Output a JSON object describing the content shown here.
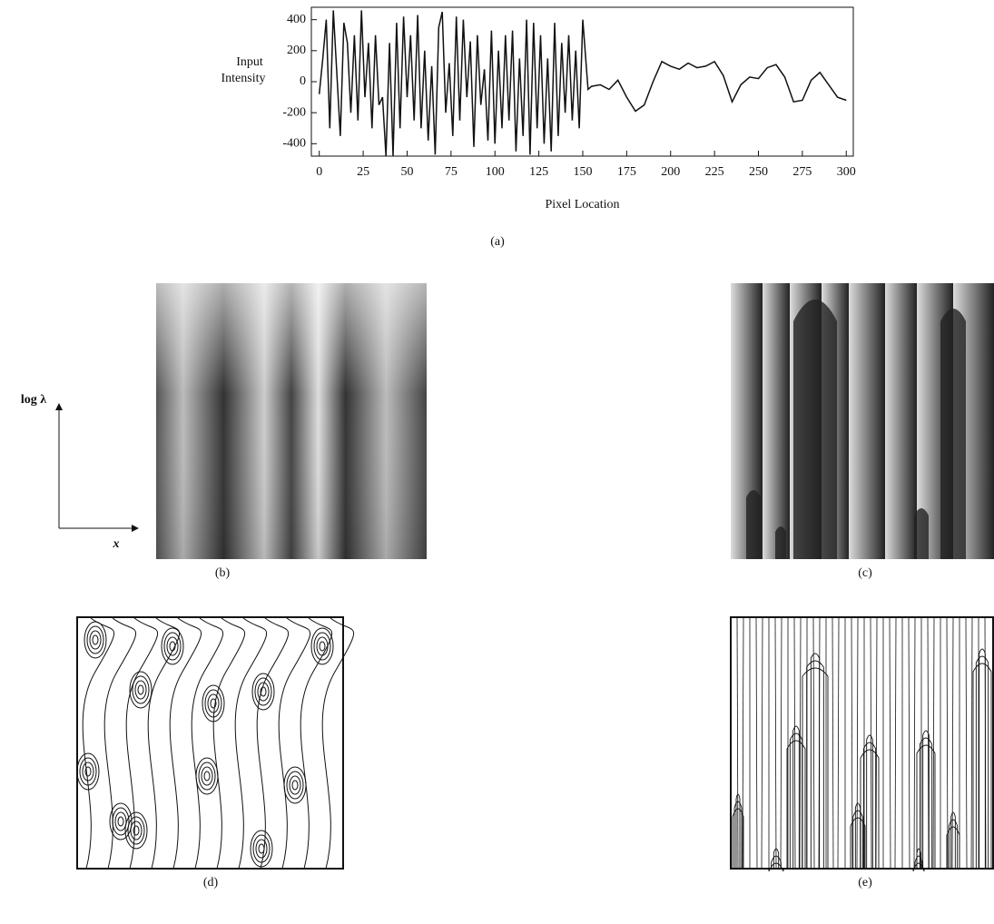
{
  "chart_data": {
    "type": "line",
    "xlabel": "Pixel Location",
    "ylabel": [
      "Input",
      "Intensity"
    ],
    "x": [
      0,
      2,
      4,
      6,
      8,
      10,
      12,
      14,
      16,
      18,
      20,
      22,
      24,
      26,
      28,
      30,
      32,
      34,
      36,
      38,
      40,
      42,
      44,
      46,
      48,
      50,
      52,
      54,
      56,
      58,
      60,
      62,
      64,
      66,
      68,
      70,
      72,
      74,
      76,
      78,
      80,
      82,
      84,
      86,
      88,
      90,
      92,
      94,
      96,
      98,
      100,
      102,
      104,
      106,
      108,
      110,
      112,
      114,
      116,
      118,
      120,
      122,
      124,
      126,
      128,
      130,
      132,
      134,
      136,
      138,
      140,
      142,
      144,
      146,
      148,
      150,
      153,
      155,
      160,
      165,
      170,
      175,
      180,
      185,
      190,
      195,
      200,
      205,
      210,
      215,
      220,
      225,
      230,
      235,
      240,
      245,
      250,
      255,
      260,
      265,
      270,
      275,
      280,
      285,
      290,
      295,
      300
    ],
    "values": [
      -80,
      150,
      400,
      -300,
      460,
      50,
      -350,
      380,
      250,
      -200,
      300,
      -250,
      460,
      -100,
      250,
      -300,
      300,
      -150,
      -100,
      -480,
      250,
      -480,
      380,
      -300,
      420,
      -100,
      300,
      -250,
      430,
      -300,
      200,
      -380,
      100,
      -470,
      350,
      450,
      -200,
      120,
      -350,
      420,
      -250,
      400,
      -100,
      260,
      -420,
      300,
      -150,
      80,
      -380,
      330,
      -400,
      200,
      -300,
      300,
      -250,
      330,
      -450,
      150,
      -350,
      400,
      -470,
      380,
      -300,
      300,
      -400,
      150,
      -450,
      380,
      -350,
      250,
      -200,
      300,
      -250,
      200,
      -300,
      400,
      -50,
      -30,
      -20,
      -50,
      10,
      -100,
      -190,
      -150,
      0,
      130,
      100,
      80,
      120,
      90,
      100,
      130,
      40,
      -130,
      -20,
      30,
      20,
      90,
      110,
      30,
      -130,
      -120,
      10,
      60,
      -20,
      -100,
      -120
    ],
    "color": "#111111",
    "xlim": [
      -4.5,
      304
    ],
    "xticks": [
      0,
      25,
      50,
      75,
      100,
      125,
      150,
      175,
      200,
      225,
      250,
      275,
      300
    ],
    "ylim": [
      -480,
      480
    ],
    "yticks": [
      400,
      200,
      0,
      -200,
      -400
    ]
  },
  "panels": {
    "a": "(a)",
    "b": "(b)",
    "c": "(c)",
    "d": "(d)",
    "e": "(e)"
  },
  "axes_sketch": {
    "y": "log λ",
    "x": "x"
  }
}
